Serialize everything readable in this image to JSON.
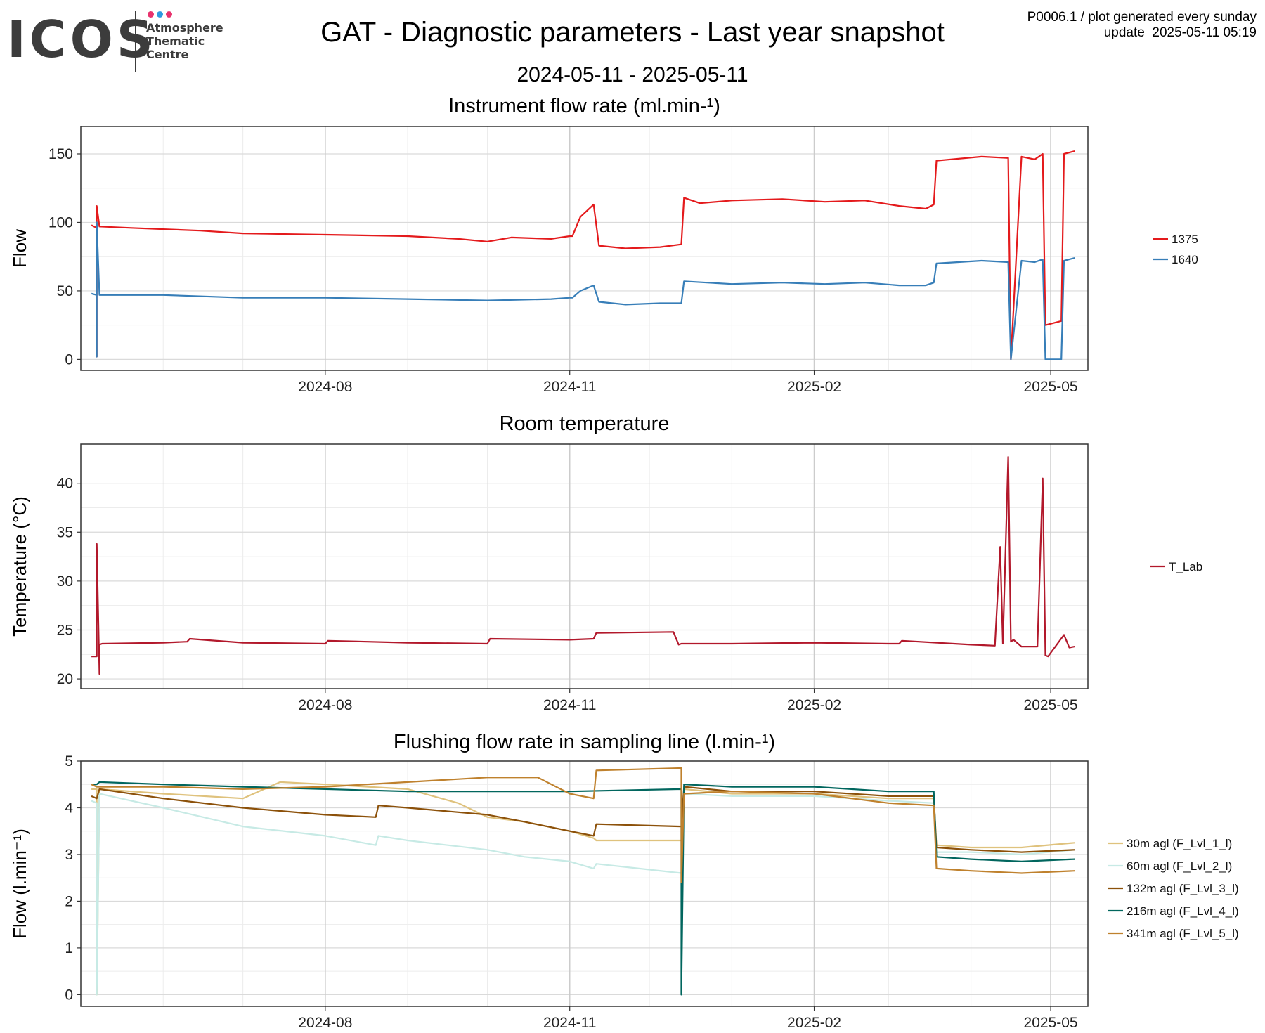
{
  "header": {
    "title": "GAT - Diagnostic parameters - Last year snapshot",
    "subtitle": "2024-05-11 - 2025-05-11",
    "info_line1": "P0006.1 / plot generated every sunday",
    "info_line2": "update  2025-05-11 05:19"
  },
  "logo": {
    "wordmark": "ICOS",
    "line1": "Atmosphere",
    "line2": "Thematic",
    "line3": "Centre",
    "dot_colors": [
      "#e8336e",
      "#2e9be0",
      "#e8336e"
    ]
  },
  "chart_data": [
    {
      "id": "flow",
      "type": "line",
      "title": "Instrument flow rate (ml.min-¹)",
      "xlabel": "",
      "ylabel": "Flow",
      "xlim": [
        "2024-05-01",
        "2025-05-15"
      ],
      "ylim": [
        -8,
        170
      ],
      "x_ticks": [
        "2024-08",
        "2024-11",
        "2025-02",
        "2025-05"
      ],
      "y_ticks": [
        0,
        50,
        100,
        150
      ],
      "grid": true,
      "legend_position": "right",
      "series": [
        {
          "name": "1375",
          "color": "#e41a1c",
          "x": [
            "2024-05-05",
            "2024-05-07",
            "2024-05-07",
            "2024-05-07",
            "2024-05-08",
            "2024-05-20",
            "2024-06-15",
            "2024-07-01",
            "2024-08-01",
            "2024-09-01",
            "2024-09-20",
            "2024-10-01",
            "2024-10-10",
            "2024-10-25",
            "2024-11-01",
            "2024-11-02",
            "2024-11-05",
            "2024-11-10",
            "2024-11-12",
            "2024-11-22",
            "2024-12-05",
            "2024-12-13",
            "2024-12-14",
            "2024-12-20",
            "2025-01-01",
            "2025-01-20",
            "2025-02-05",
            "2025-02-20",
            "2025-03-05",
            "2025-03-15",
            "2025-03-18",
            "2025-03-19",
            "2025-04-05",
            "2025-04-15",
            "2025-04-16",
            "2025-04-20",
            "2025-04-25",
            "2025-04-28",
            "2025-04-29",
            "2025-05-05",
            "2025-05-06",
            "2025-05-10"
          ],
          "y": [
            98,
            96,
            2,
            112,
            97,
            96,
            94,
            92,
            91,
            90,
            88,
            86,
            89,
            88,
            90,
            90,
            104,
            113,
            83,
            81,
            82,
            84,
            118,
            114,
            116,
            117,
            115,
            116,
            112,
            110,
            113,
            145,
            148,
            147,
            0,
            148,
            146,
            150,
            25,
            28,
            150,
            152
          ]
        },
        {
          "name": "1640",
          "color": "#377eb8",
          "x": [
            "2024-05-05",
            "2024-05-07",
            "2024-05-07",
            "2024-05-07",
            "2024-05-08",
            "2024-06-01",
            "2024-07-01",
            "2024-08-01",
            "2024-09-01",
            "2024-10-01",
            "2024-10-25",
            "2024-11-01",
            "2024-11-02",
            "2024-11-05",
            "2024-11-10",
            "2024-11-12",
            "2024-11-22",
            "2024-12-05",
            "2024-12-13",
            "2024-12-14",
            "2025-01-01",
            "2025-01-20",
            "2025-02-05",
            "2025-02-20",
            "2025-03-05",
            "2025-03-15",
            "2025-03-18",
            "2025-03-19",
            "2025-04-05",
            "2025-04-15",
            "2025-04-16",
            "2025-04-20",
            "2025-04-25",
            "2025-04-28",
            "2025-04-29",
            "2025-05-05",
            "2025-05-06",
            "2025-05-10"
          ],
          "y": [
            48,
            47,
            2,
            100,
            47,
            47,
            45,
            45,
            44,
            43,
            44,
            45,
            45,
            50,
            54,
            42,
            40,
            41,
            41,
            57,
            55,
            56,
            55,
            56,
            54,
            54,
            56,
            70,
            72,
            71,
            0,
            72,
            71,
            73,
            0,
            0,
            72,
            74
          ]
        }
      ]
    },
    {
      "id": "temp",
      "type": "line",
      "title": "Room temperature",
      "xlabel": "",
      "ylabel": "Temperature (°C)",
      "xlim": [
        "2024-05-01",
        "2025-05-15"
      ],
      "ylim": [
        19,
        44
      ],
      "x_ticks": [
        "2024-08",
        "2024-11",
        "2025-02",
        "2025-05"
      ],
      "y_ticks": [
        20,
        25,
        30,
        35,
        40
      ],
      "grid": true,
      "legend_position": "right",
      "series": [
        {
          "name": "T_Lab",
          "color": "#b2182b",
          "x": [
            "2024-05-05",
            "2024-05-07",
            "2024-05-07",
            "2024-05-08",
            "2024-05-08",
            "2024-05-09",
            "2024-06-01",
            "2024-06-10",
            "2024-06-11",
            "2024-07-01",
            "2024-08-01",
            "2024-08-02",
            "2024-09-01",
            "2024-10-01",
            "2024-10-02",
            "2024-11-01",
            "2024-11-10",
            "2024-11-11",
            "2024-12-10",
            "2024-12-12",
            "2024-12-13",
            "2025-01-01",
            "2025-02-01",
            "2025-03-01",
            "2025-03-05",
            "2025-03-06",
            "2025-04-01",
            "2025-04-10",
            "2025-04-12",
            "2025-04-13",
            "2025-04-15",
            "2025-04-16",
            "2025-04-17",
            "2025-04-20",
            "2025-04-26",
            "2025-04-28",
            "2025-04-29",
            "2025-04-30",
            "2025-05-06",
            "2025-05-08",
            "2025-05-10"
          ],
          "y": [
            22.3,
            22.3,
            33.8,
            20.5,
            23.5,
            23.6,
            23.7,
            23.8,
            24.1,
            23.7,
            23.6,
            23.9,
            23.7,
            23.6,
            24.1,
            24.0,
            24.1,
            24.7,
            24.8,
            23.5,
            23.6,
            23.6,
            23.7,
            23.6,
            23.6,
            23.9,
            23.5,
            23.4,
            33.5,
            23.6,
            42.7,
            23.8,
            24.0,
            23.3,
            23.3,
            40.5,
            22.4,
            22.3,
            24.5,
            23.2,
            23.3
          ]
        }
      ]
    },
    {
      "id": "flush",
      "type": "line",
      "title": "Flushing flow rate in sampling line (l.min-¹)",
      "xlabel": "",
      "ylabel": "Flow (l.min⁻¹)",
      "xlim": [
        "2024-05-01",
        "2025-05-15"
      ],
      "ylim": [
        -0.25,
        5.0
      ],
      "x_ticks": [
        "2024-08",
        "2024-11",
        "2025-02",
        "2025-05"
      ],
      "y_ticks": [
        0,
        1,
        2,
        3,
        4,
        5
      ],
      "grid": true,
      "legend_position": "right",
      "series": [
        {
          "name": "30m agl (F_Lvl_1_l)",
          "color": "#dfc27d",
          "x": [
            "2024-05-05",
            "2024-05-07",
            "2024-05-07",
            "2024-05-08",
            "2024-06-01",
            "2024-07-01",
            "2024-07-15",
            "2024-08-01",
            "2024-09-01",
            "2024-09-20",
            "2024-10-01",
            "2024-10-15",
            "2024-11-01",
            "2024-11-10",
            "2024-11-11",
            "2024-12-13",
            "2024-12-14",
            "2025-01-01",
            "2025-02-01",
            "2025-03-01",
            "2025-03-18",
            "2025-03-19",
            "2025-04-01",
            "2025-04-20",
            "2025-05-10"
          ],
          "y": [
            4.4,
            4.4,
            0.0,
            4.4,
            4.3,
            4.2,
            4.55,
            4.5,
            4.4,
            4.1,
            3.8,
            3.7,
            3.5,
            3.35,
            3.3,
            3.3,
            4.4,
            4.3,
            4.3,
            4.2,
            4.2,
            3.2,
            3.15,
            3.15,
            3.25
          ]
        },
        {
          "name": "60m agl (F_Lvl_2_l)",
          "color": "#c7eae5",
          "x": [
            "2024-05-05",
            "2024-05-07",
            "2024-05-07",
            "2024-05-08",
            "2024-06-01",
            "2024-07-01",
            "2024-08-01",
            "2024-08-20",
            "2024-08-21",
            "2024-09-01",
            "2024-10-01",
            "2024-10-15",
            "2024-11-01",
            "2024-11-10",
            "2024-11-11",
            "2024-12-13",
            "2024-12-14",
            "2025-01-01",
            "2025-02-01",
            "2025-03-01",
            "2025-03-18",
            "2025-03-19",
            "2025-04-01",
            "2025-04-20",
            "2025-05-10"
          ],
          "y": [
            4.15,
            4.1,
            0.0,
            4.3,
            4.0,
            3.6,
            3.4,
            3.2,
            3.4,
            3.3,
            3.1,
            2.95,
            2.85,
            2.7,
            2.8,
            2.6,
            4.3,
            4.25,
            4.25,
            4.15,
            4.1,
            3.05,
            3.05,
            3.0,
            3.1
          ]
        },
        {
          "name": "132m agl (F_Lvl_3_l)",
          "color": "#8c510a",
          "x": [
            "2024-05-05",
            "2024-05-07",
            "2024-05-08",
            "2024-06-01",
            "2024-07-01",
            "2024-08-01",
            "2024-08-20",
            "2024-08-21",
            "2024-09-01",
            "2024-10-01",
            "2024-10-15",
            "2024-11-01",
            "2024-11-10",
            "2024-11-11",
            "2024-12-13",
            "2024-12-14",
            "2025-01-01",
            "2025-02-01",
            "2025-03-01",
            "2025-03-18",
            "2025-03-19",
            "2025-04-01",
            "2025-04-20",
            "2025-05-10"
          ],
          "y": [
            4.25,
            4.2,
            4.4,
            4.2,
            4.0,
            3.85,
            3.8,
            4.05,
            4.0,
            3.85,
            3.7,
            3.5,
            3.4,
            3.65,
            3.6,
            4.45,
            4.35,
            4.35,
            4.25,
            4.25,
            3.15,
            3.1,
            3.05,
            3.1
          ]
        },
        {
          "name": "216m agl (F_Lvl_4_l)",
          "color": "#01665e",
          "x": [
            "2024-05-05",
            "2024-05-07",
            "2024-05-08",
            "2024-06-01",
            "2024-07-01",
            "2024-08-01",
            "2024-09-01",
            "2024-10-01",
            "2024-11-01",
            "2024-12-13",
            "2024-12-13",
            "2024-12-14",
            "2025-01-01",
            "2025-02-01",
            "2025-03-01",
            "2025-03-18",
            "2025-03-19",
            "2025-04-01",
            "2025-04-20",
            "2025-05-10"
          ],
          "y": [
            4.5,
            4.5,
            4.55,
            4.5,
            4.45,
            4.4,
            4.35,
            4.35,
            4.35,
            4.4,
            0.0,
            4.5,
            4.45,
            4.45,
            4.35,
            4.35,
            2.95,
            2.9,
            2.85,
            2.9
          ]
        },
        {
          "name": "341m agl (F_Lvl_5_l)",
          "color": "#bf812d",
          "x": [
            "2024-05-05",
            "2024-05-07",
            "2024-05-08",
            "2024-06-01",
            "2024-07-01",
            "2024-08-01",
            "2024-09-01",
            "2024-10-01",
            "2024-10-20",
            "2024-11-01",
            "2024-11-10",
            "2024-11-11",
            "2024-12-13",
            "2024-12-13",
            "2024-12-14",
            "2025-01-01",
            "2025-02-01",
            "2025-03-01",
            "2025-03-18",
            "2025-03-19",
            "2025-04-01",
            "2025-04-20",
            "2025-05-10"
          ],
          "y": [
            4.5,
            4.45,
            4.45,
            4.45,
            4.4,
            4.45,
            4.55,
            4.65,
            4.65,
            4.3,
            4.2,
            4.8,
            4.85,
            2.4,
            4.3,
            4.35,
            4.3,
            4.1,
            4.05,
            2.7,
            2.65,
            2.6,
            2.65
          ]
        }
      ]
    }
  ]
}
